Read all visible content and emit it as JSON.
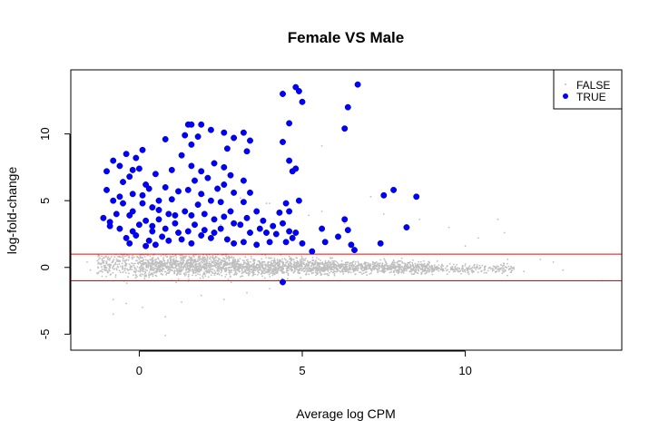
{
  "chart_data": {
    "type": "scatter",
    "title": "Female VS Male",
    "xlabel": "Average log CPM",
    "ylabel": "log-fold-change",
    "xlim": [
      -2.1,
      14.8
    ],
    "ylim": [
      -6.2,
      14.8
    ],
    "xticks": [
      0,
      5,
      10
    ],
    "yticks": [
      -5,
      0,
      5,
      10
    ],
    "grid": false,
    "legend_position": "top-right",
    "hlines": [
      1,
      -1
    ],
    "colors": {
      "FALSE": "#bebebe",
      "TRUE": "#0000ff",
      "hline": "#ff0000"
    },
    "series": [
      {
        "name": "FALSE",
        "marker": "small-dot",
        "density_bands": [
          {
            "x_range": [
              -1.3,
              0.0
            ],
            "y_center": 0.25,
            "spread": 0.9,
            "count": 220
          },
          {
            "x_range": [
              0.0,
              3.0
            ],
            "y_center": 0.15,
            "spread": 0.75,
            "count": 1000
          },
          {
            "x_range": [
              3.0,
              6.0
            ],
            "y_center": 0.05,
            "spread": 0.55,
            "count": 900
          },
          {
            "x_range": [
              6.0,
              9.0
            ],
            "y_center": 0.0,
            "spread": 0.4,
            "count": 650
          },
          {
            "x_range": [
              9.0,
              11.5
            ],
            "y_center": -0.1,
            "spread": 0.3,
            "count": 220
          }
        ],
        "outliers": [
          [
            -1.6,
            0.4
          ],
          [
            -1.5,
            -0.2
          ],
          [
            -0.8,
            -2.4
          ],
          [
            -0.8,
            -3.5
          ],
          [
            -0.4,
            -2.7
          ],
          [
            0.1,
            -3.0
          ],
          [
            0.8,
            -3.7
          ],
          [
            0.8,
            -5.1
          ],
          [
            1.3,
            -2.6
          ],
          [
            1.9,
            -2.1
          ],
          [
            2.6,
            -2.4
          ],
          [
            3.3,
            -1.9
          ],
          [
            4.0,
            -1.6
          ],
          [
            0.5,
            4.6
          ],
          [
            2.0,
            5.4
          ],
          [
            2.5,
            3.2
          ],
          [
            3.1,
            5.2
          ],
          [
            4.0,
            4.8
          ],
          [
            5.2,
            3.9
          ],
          [
            5.6,
            4.2
          ],
          [
            6.3,
            3.3
          ],
          [
            7.1,
            5.3
          ],
          [
            7.5,
            4.0
          ],
          [
            8.6,
            3.6
          ],
          [
            9.5,
            3.0
          ],
          [
            10.0,
            1.6
          ],
          [
            10.4,
            2.2
          ],
          [
            11.0,
            3.6
          ],
          [
            11.2,
            2.6
          ],
          [
            11.3,
            0.6
          ],
          [
            11.8,
            -0.3
          ],
          [
            12.3,
            0.6
          ],
          [
            12.7,
            0.4
          ],
          [
            13.0,
            -0.2
          ],
          [
            14.2,
            -1.0
          ],
          [
            5.6,
            9.1
          ],
          [
            3.9,
            4.8
          ]
        ]
      },
      {
        "name": "TRUE",
        "marker": "filled-circle",
        "points": [
          [
            -1.1,
            3.7
          ],
          [
            -0.9,
            3.4
          ],
          [
            -0.7,
            4.0
          ],
          [
            -0.5,
            4.8
          ],
          [
            -0.3,
            3.9
          ],
          [
            -1.0,
            7.2
          ],
          [
            -0.8,
            8.0
          ],
          [
            -0.6,
            7.6
          ],
          [
            -0.5,
            6.4
          ],
          [
            -0.3,
            6.8
          ],
          [
            -0.4,
            8.5
          ],
          [
            -0.1,
            8.2
          ],
          [
            0.1,
            8.8
          ],
          [
            -0.2,
            7.3
          ],
          [
            0.0,
            7.4
          ],
          [
            0.2,
            6.2
          ],
          [
            0.3,
            5.9
          ],
          [
            0.1,
            5.4
          ],
          [
            -0.2,
            5.5
          ],
          [
            -0.6,
            5.3
          ],
          [
            -0.8,
            5.0
          ],
          [
            -1.0,
            5.8
          ],
          [
            0.4,
            4.5
          ],
          [
            0.6,
            4.3
          ],
          [
            0.2,
            3.5
          ],
          [
            0.4,
            3.1
          ],
          [
            0.6,
            3.6
          ],
          [
            0.8,
            2.9
          ],
          [
            0.0,
            3.2
          ],
          [
            -0.2,
            2.7
          ],
          [
            -0.4,
            2.2
          ],
          [
            -0.3,
            1.8
          ],
          [
            -0.1,
            2.4
          ],
          [
            0.3,
            2.0
          ],
          [
            0.5,
            1.7
          ],
          [
            0.7,
            2.3
          ],
          [
            0.9,
            2.0
          ],
          [
            0.2,
            1.6
          ],
          [
            -0.6,
            2.9
          ],
          [
            -0.9,
            3.1
          ],
          [
            0.5,
            7.0
          ],
          [
            0.8,
            6.0
          ],
          [
            1.0,
            7.3
          ],
          [
            0.9,
            4.0
          ],
          [
            1.1,
            3.3
          ],
          [
            1.2,
            2.6
          ],
          [
            1.3,
            2.1
          ],
          [
            1.0,
            5.1
          ],
          [
            1.2,
            5.7
          ],
          [
            0.6,
            5.0
          ],
          [
            0.1,
            4.8
          ],
          [
            -0.2,
            4.2
          ],
          [
            0.8,
            9.6
          ],
          [
            1.5,
            10.7
          ],
          [
            1.4,
            9.9
          ],
          [
            1.6,
            10.7
          ],
          [
            1.9,
            10.7
          ],
          [
            1.8,
            9.8
          ],
          [
            2.2,
            10.3
          ],
          [
            1.6,
            9.2
          ],
          [
            1.3,
            8.4
          ],
          [
            1.6,
            7.6
          ],
          [
            1.9,
            7.2
          ],
          [
            2.3,
            7.8
          ],
          [
            2.1,
            6.7
          ],
          [
            1.7,
            6.5
          ],
          [
            1.5,
            5.8
          ],
          [
            1.9,
            5.5
          ],
          [
            2.4,
            5.9
          ],
          [
            2.2,
            5.0
          ],
          [
            1.8,
            4.7
          ],
          [
            1.4,
            4.2
          ],
          [
            1.6,
            3.9
          ],
          [
            2.0,
            4.0
          ],
          [
            2.3,
            3.6
          ],
          [
            1.7,
            3.2
          ],
          [
            2.0,
            2.8
          ],
          [
            2.3,
            2.6
          ],
          [
            1.5,
            2.7
          ],
          [
            1.9,
            2.4
          ],
          [
            2.2,
            2.2
          ],
          [
            1.6,
            1.8
          ],
          [
            2.6,
            10.1
          ],
          [
            2.9,
            9.7
          ],
          [
            2.7,
            8.9
          ],
          [
            2.6,
            7.5
          ],
          [
            2.8,
            6.9
          ],
          [
            2.6,
            6.2
          ],
          [
            2.9,
            5.6
          ],
          [
            2.5,
            4.9
          ],
          [
            2.8,
            4.2
          ],
          [
            2.6,
            3.8
          ],
          [
            2.9,
            3.3
          ],
          [
            2.5,
            2.9
          ],
          [
            2.7,
            2.1
          ],
          [
            2.9,
            1.8
          ],
          [
            3.2,
            10.1
          ],
          [
            3.4,
            9.5
          ],
          [
            3.3,
            8.7
          ],
          [
            3.2,
            6.5
          ],
          [
            3.4,
            5.6
          ],
          [
            3.2,
            4.9
          ],
          [
            3.3,
            3.7
          ],
          [
            3.1,
            3.2
          ],
          [
            3.4,
            2.6
          ],
          [
            3.2,
            1.9
          ],
          [
            3.6,
            4.2
          ],
          [
            3.7,
            2.9
          ],
          [
            3.8,
            3.5
          ],
          [
            3.9,
            2.6
          ],
          [
            4.0,
            1.9
          ],
          [
            3.6,
            1.7
          ],
          [
            4.1,
            3.1
          ],
          [
            4.2,
            2.5
          ],
          [
            4.4,
            13.0
          ],
          [
            4.6,
            10.8
          ],
          [
            4.4,
            9.4
          ],
          [
            4.6,
            8.0
          ],
          [
            4.7,
            7.2
          ],
          [
            4.5,
            4.8
          ],
          [
            4.6,
            4.2
          ],
          [
            4.3,
            4.1
          ],
          [
            4.4,
            3.3
          ],
          [
            4.6,
            2.7
          ],
          [
            4.5,
            1.9
          ],
          [
            4.7,
            2.2
          ],
          [
            4.4,
            -1.1
          ],
          [
            4.8,
            13.5
          ],
          [
            4.9,
            13.2
          ],
          [
            5.0,
            12.4
          ],
          [
            4.8,
            7.4
          ],
          [
            4.9,
            5.0
          ],
          [
            4.8,
            2.6
          ],
          [
            5.0,
            1.8
          ],
          [
            5.3,
            1.2
          ],
          [
            5.6,
            2.9
          ],
          [
            5.7,
            1.9
          ],
          [
            6.1,
            2.3
          ],
          [
            6.3,
            10.4
          ],
          [
            6.4,
            12.0
          ],
          [
            6.3,
            3.6
          ],
          [
            6.4,
            2.8
          ],
          [
            6.7,
            13.7
          ],
          [
            6.6,
            1.3
          ],
          [
            7.5,
            5.4
          ],
          [
            7.8,
            5.8
          ],
          [
            8.2,
            3.0
          ],
          [
            8.5,
            5.3
          ],
          [
            7.4,
            1.8
          ],
          [
            6.5,
            1.7
          ],
          [
            1.1,
            3.9
          ],
          [
            0.4,
            2.7
          ]
        ]
      }
    ]
  }
}
